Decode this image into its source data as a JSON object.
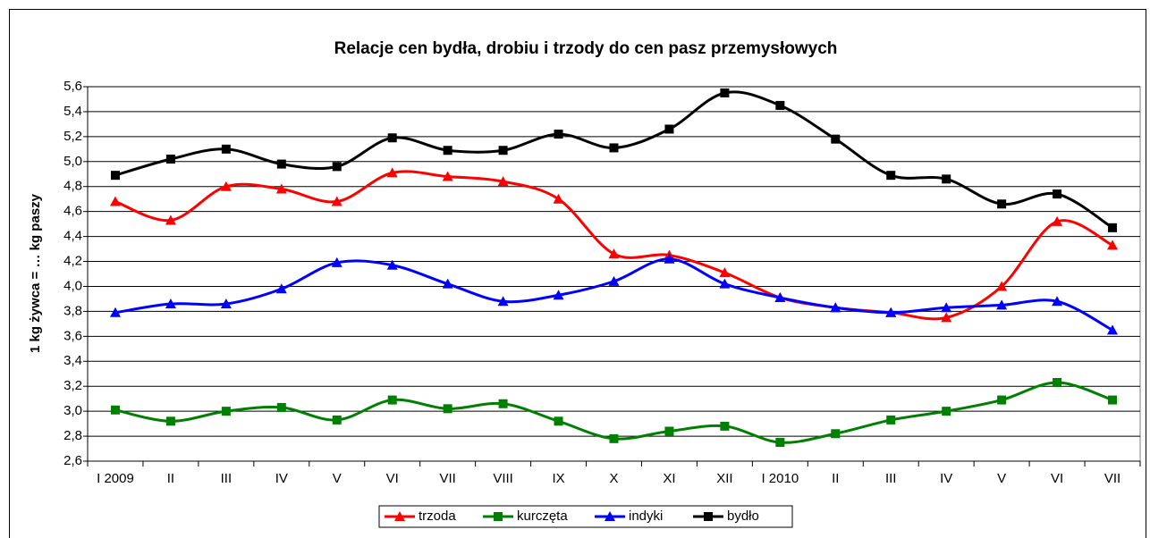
{
  "chart_data": {
    "type": "line",
    "title": "Relacje cen bydła, drobiu i trzody do cen pasz przemysłowych",
    "y_label": "1 kg żywca = … kg paszy",
    "categories": [
      "I 2009",
      "II",
      "III",
      "IV",
      "V",
      "VI",
      "VII",
      "VIII",
      "IX",
      "X",
      "XI",
      "XII",
      "I 2010",
      "II",
      "III",
      "IV",
      "V",
      "VI",
      "VII"
    ],
    "series": [
      {
        "name": "trzoda",
        "color": "#ff0000",
        "marker": "triangle",
        "values": [
          4.68,
          4.53,
          4.8,
          4.78,
          4.68,
          4.91,
          4.88,
          4.84,
          4.7,
          4.26,
          4.25,
          4.11,
          3.91,
          3.83,
          3.79,
          3.75,
          4.0,
          4.52,
          4.33
        ]
      },
      {
        "name": "kurczęta",
        "color": "#008000",
        "marker": "square",
        "values": [
          3.01,
          2.92,
          3.0,
          3.03,
          2.93,
          3.09,
          3.02,
          3.06,
          2.92,
          2.78,
          2.84,
          2.88,
          2.75,
          2.82,
          2.93,
          3.0,
          3.09,
          3.23,
          3.09
        ]
      },
      {
        "name": "indyki",
        "color": "#0000ff",
        "marker": "triangle",
        "values": [
          3.79,
          3.86,
          3.86,
          3.98,
          4.19,
          4.17,
          4.02,
          3.88,
          3.93,
          4.04,
          4.22,
          4.02,
          3.91,
          3.83,
          3.79,
          3.83,
          3.85,
          3.88,
          3.65
        ]
      },
      {
        "name": "bydło",
        "color": "#000000",
        "marker": "square",
        "values": [
          4.89,
          5.02,
          5.1,
          4.98,
          4.96,
          5.19,
          5.09,
          5.09,
          5.22,
          5.11,
          5.26,
          5.55,
          5.45,
          5.18,
          4.89,
          4.86,
          4.66,
          4.74,
          4.47
        ]
      }
    ],
    "ylim": [
      2.6,
      5.6
    ],
    "yticks": [
      {
        "value": 2.6,
        "label": "2,6"
      },
      {
        "value": 2.8,
        "label": "2,8"
      },
      {
        "value": 3.0,
        "label": "3,0"
      },
      {
        "value": 3.2,
        "label": "3,2"
      },
      {
        "value": 3.4,
        "label": "3,4"
      },
      {
        "value": 3.6,
        "label": "3,6"
      },
      {
        "value": 3.8,
        "label": "3,8"
      },
      {
        "value": 4.0,
        "label": "4,0"
      },
      {
        "value": 4.2,
        "label": "4,2"
      },
      {
        "value": 4.4,
        "label": "4,4"
      },
      {
        "value": 4.6,
        "label": "4,6"
      },
      {
        "value": 4.8,
        "label": "4,8"
      },
      {
        "value": 5.0,
        "label": "5,0"
      },
      {
        "value": 5.2,
        "label": "5,2"
      },
      {
        "value": 5.4,
        "label": "5,4"
      },
      {
        "value": 5.6,
        "label": "5,6"
      }
    ],
    "grid": true,
    "legend": "bottom"
  }
}
